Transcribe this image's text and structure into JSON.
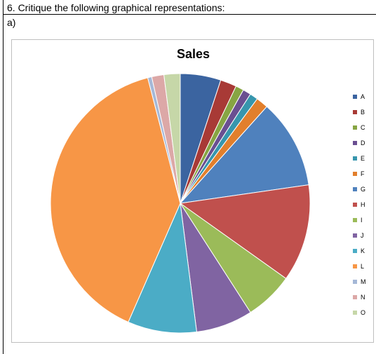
{
  "document": {
    "question": "6.  Critique the following graphical representations:",
    "part_label": "a)"
  },
  "chart_data": {
    "type": "pie",
    "title": "Sales",
    "legend_position": "right",
    "slices": [
      {
        "label": "A",
        "value": 5.0,
        "color": "#3b64a0"
      },
      {
        "label": "B",
        "value": 2.0,
        "color": "#a83a36"
      },
      {
        "label": "C",
        "value": 1.0,
        "color": "#87a543"
      },
      {
        "label": "D",
        "value": 1.0,
        "color": "#6a4f91"
      },
      {
        "label": "E",
        "value": 1.0,
        "color": "#3796ad"
      },
      {
        "label": "F",
        "value": 1.5,
        "color": "#e27f2c"
      },
      {
        "label": "G",
        "value": 11.0,
        "color": "#4f81bd"
      },
      {
        "label": "H",
        "value": 12.0,
        "color": "#c0504d"
      },
      {
        "label": "I",
        "value": 6.0,
        "color": "#9bbb59"
      },
      {
        "label": "J",
        "value": 7.0,
        "color": "#8064a2"
      },
      {
        "label": "K",
        "value": 8.5,
        "color": "#4bacc6"
      },
      {
        "label": "L",
        "value": 39.0,
        "color": "#f79646"
      },
      {
        "label": "M",
        "value": 0.5,
        "color": "#a5b8d7"
      },
      {
        "label": "N",
        "value": 1.5,
        "color": "#dca8a7"
      },
      {
        "label": "O",
        "value": 2.0,
        "color": "#c6d7a8"
      }
    ]
  }
}
